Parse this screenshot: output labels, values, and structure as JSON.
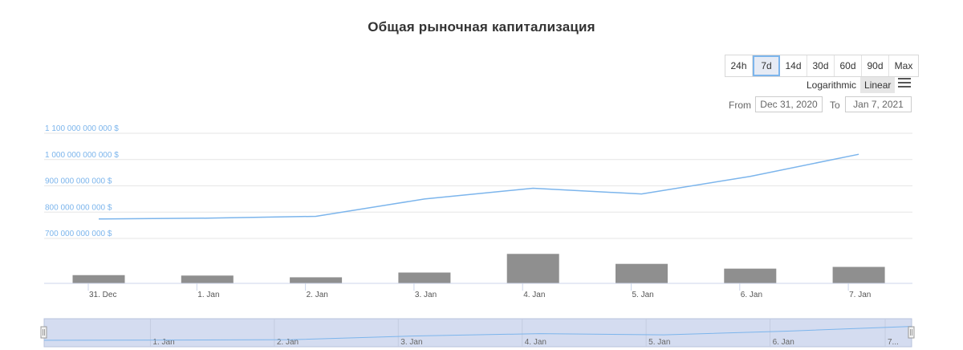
{
  "title": "Общая рыночная капитализация",
  "range_selector": {
    "buttons": [
      "24h",
      "7d",
      "14d",
      "30d",
      "60d",
      "90d",
      "Max"
    ],
    "selected": "7d"
  },
  "scale": {
    "logarithmic_label": "Logarithmic",
    "linear_label": "Linear",
    "selected": "Linear"
  },
  "date_range": {
    "from_label": "From",
    "from_value": "Dec 31, 2020",
    "to_label": "To",
    "to_value": "Jan 7, 2021"
  },
  "colors": {
    "line": "#7cb5ec",
    "bars": "#8f8f8f",
    "navigator_fill": "#d4dcf0",
    "axis_label": "#7cb5ec"
  },
  "chart_data": {
    "type": "line",
    "title": "Общая рыночная капитализация",
    "x": [
      "31. Dec",
      "1. Jan",
      "2. Jan",
      "3. Jan",
      "4. Jan",
      "5. Jan",
      "6. Jan",
      "7. Jan"
    ],
    "y_tick_labels": [
      "1 100 000 000 000 $",
      "1 000 000 000 000 $",
      "900 000 000 000 $",
      "800 000 000 000 $",
      "700 000 000 000 $"
    ],
    "y_ticks": [
      1100000000000,
      1000000000000,
      900000000000,
      800000000000,
      700000000000
    ],
    "ylim": [
      700000000000,
      1100000000000
    ],
    "series": [
      {
        "type": "line",
        "values": [
          774000000000,
          777000000000,
          784000000000,
          850000000000,
          891000000000,
          869000000000,
          936000000000,
          1020000000000
        ]
      },
      {
        "type": "bar",
        "values": [
          0.19,
          0.18,
          0.14,
          0.25,
          0.68,
          0.45,
          0.34,
          0.38
        ]
      }
    ],
    "navigator": {
      "x_labels": [
        "1. Jan",
        "2. Jan",
        "3. Jan",
        "4. Jan",
        "5. Jan",
        "6. Jan",
        "7..."
      ]
    },
    "grid": true
  }
}
